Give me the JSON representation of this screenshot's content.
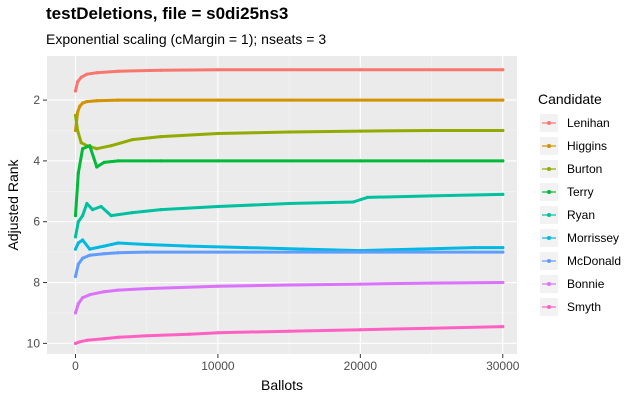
{
  "chart_data": {
    "type": "line",
    "title": "testDeletions, file = s0di25ns3",
    "subtitle": "Exponential scaling (cMargin = 1); nseats = 3",
    "xlabel": "Ballots",
    "ylabel": "Adjusted Rank",
    "xlim": [
      -2000,
      31000
    ],
    "ylim": [
      0.55,
      10.35
    ],
    "y_reversed": true,
    "x_ticks": [
      0,
      10000,
      20000,
      30000
    ],
    "x_tick_labels": [
      "0",
      "10000",
      "20000",
      "30000"
    ],
    "y_ticks": [
      2,
      4,
      6,
      8,
      10
    ],
    "y_tick_labels": [
      "2",
      "4",
      "6",
      "8",
      "10"
    ],
    "grid": true,
    "legend_title": "Candidate",
    "legend_position": "right",
    "series": [
      {
        "name": "Lenihan",
        "color": "#F8766D",
        "x": [
          0,
          150,
          400,
          800,
          1500,
          3000,
          6000,
          10000,
          20000,
          30000
        ],
        "y": [
          1.7,
          1.4,
          1.25,
          1.15,
          1.1,
          1.05,
          1.02,
          1.0,
          1.0,
          1.0
        ]
      },
      {
        "name": "Higgins",
        "color": "#D39200",
        "x": [
          0,
          150,
          300,
          500,
          800,
          1500,
          3000,
          10000,
          30000
        ],
        "y": [
          3.0,
          2.4,
          2.2,
          2.1,
          2.05,
          2.02,
          2.0,
          2.0,
          2.0
        ]
      },
      {
        "name": "Burton",
        "color": "#93AA00",
        "x": [
          0,
          150,
          400,
          800,
          1500,
          2500,
          4000,
          6000,
          10000,
          15000,
          20000,
          25000,
          30000
        ],
        "y": [
          2.5,
          3.0,
          3.4,
          3.5,
          3.6,
          3.5,
          3.3,
          3.2,
          3.1,
          3.05,
          3.02,
          3.0,
          3.0
        ]
      },
      {
        "name": "Terry",
        "color": "#00BA38",
        "x": [
          0,
          200,
          500,
          1000,
          1500,
          2000,
          3000,
          6000,
          10000,
          20000,
          30000
        ],
        "y": [
          5.8,
          4.4,
          3.6,
          3.5,
          4.2,
          4.05,
          4.0,
          4.0,
          4.0,
          4.0,
          4.0
        ]
      },
      {
        "name": "Ryan",
        "color": "#00C19F",
        "x": [
          0,
          200,
          500,
          800,
          1200,
          1800,
          2500,
          4000,
          6000,
          10000,
          15000,
          19500,
          20500,
          25000,
          30000
        ],
        "y": [
          6.5,
          6.0,
          5.8,
          5.4,
          5.6,
          5.5,
          5.8,
          5.7,
          5.6,
          5.5,
          5.4,
          5.35,
          5.2,
          5.15,
          5.1
        ]
      },
      {
        "name": "Morrissey",
        "color": "#00B9E3",
        "x": [
          0,
          200,
          500,
          1000,
          2000,
          3000,
          5000,
          8000,
          12000,
          16000,
          20000,
          24000,
          28000,
          30000
        ],
        "y": [
          6.9,
          6.7,
          6.6,
          6.9,
          6.8,
          6.7,
          6.75,
          6.8,
          6.85,
          6.9,
          6.95,
          6.9,
          6.85,
          6.85
        ]
      },
      {
        "name": "McDonald",
        "color": "#619CFF",
        "x": [
          0,
          200,
          500,
          1000,
          2000,
          3000,
          5000,
          10000,
          20000,
          30000
        ],
        "y": [
          7.8,
          7.4,
          7.2,
          7.1,
          7.05,
          7.02,
          7.0,
          7.0,
          7.0,
          7.0
        ]
      },
      {
        "name": "Bonnie",
        "color": "#DB72FB",
        "x": [
          0,
          200,
          500,
          1000,
          2000,
          3000,
          5000,
          10000,
          15000,
          20000,
          25000,
          30000
        ],
        "y": [
          9.0,
          8.7,
          8.5,
          8.4,
          8.3,
          8.25,
          8.2,
          8.12,
          8.08,
          8.05,
          8.02,
          8.0
        ]
      },
      {
        "name": "Smyth",
        "color": "#FF61C3",
        "x": [
          0,
          300,
          800,
          2000,
          3000,
          5000,
          8000,
          10000,
          15000,
          20000,
          25000,
          30000
        ],
        "y": [
          10.0,
          9.95,
          9.9,
          9.85,
          9.8,
          9.75,
          9.7,
          9.65,
          9.6,
          9.55,
          9.5,
          9.45
        ]
      }
    ]
  }
}
